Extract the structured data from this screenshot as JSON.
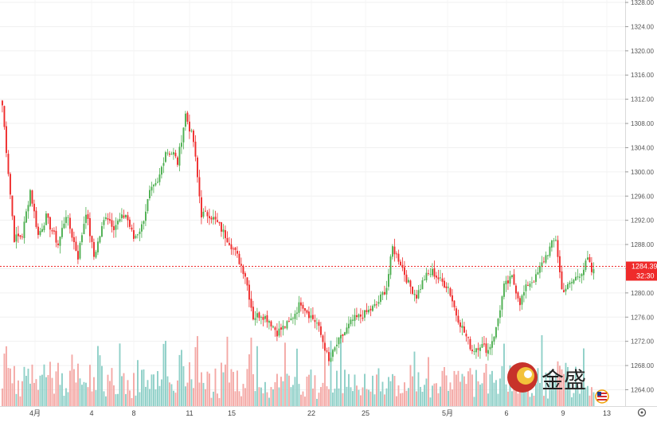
{
  "chart_data": {
    "type": "candlestick",
    "price_axis": {
      "ticks": [
        "1264.00",
        "1268.00",
        "1272.00",
        "1276.00",
        "1280.00",
        "1284.00",
        "1288.00",
        "1292.00",
        "1296.00",
        "1300.00",
        "1304.00",
        "1308.00",
        "1312.00",
        "1316.00",
        "1320.00",
        "1324.00",
        "1328.00"
      ],
      "range": [
        1261.3,
        1328.4
      ]
    },
    "time_axis": {
      "tick_labels": [
        "4月",
        "4",
        "8",
        "11",
        "15",
        "22",
        "25",
        "5月",
        "6",
        "9",
        "13"
      ]
    },
    "current_price": {
      "value": "1284.39",
      "countdown": "32:30"
    },
    "up_color": "#4caf50",
    "down_color": "#ef2b2b",
    "volume_up_color": "#8fd0c8",
    "volume_down_color": "#f4a9a6",
    "key_points": [
      {
        "i": 0,
        "p": 1311.0
      },
      {
        "i": 3,
        "p": 1300.0
      },
      {
        "i": 6,
        "p": 1289.0
      },
      {
        "i": 10,
        "p": 1289.5
      },
      {
        "i": 14,
        "p": 1297.0
      },
      {
        "i": 18,
        "p": 1289.5
      },
      {
        "i": 22,
        "p": 1292.5
      },
      {
        "i": 28,
        "p": 1288.0
      },
      {
        "i": 32,
        "p": 1293.0
      },
      {
        "i": 38,
        "p": 1286.0
      },
      {
        "i": 42,
        "p": 1293.5
      },
      {
        "i": 46,
        "p": 1286.0
      },
      {
        "i": 52,
        "p": 1293.0
      },
      {
        "i": 56,
        "p": 1291.0
      },
      {
        "i": 62,
        "p": 1293.0
      },
      {
        "i": 66,
        "p": 1289.0
      },
      {
        "i": 70,
        "p": 1291.0
      },
      {
        "i": 74,
        "p": 1296.5
      },
      {
        "i": 78,
        "p": 1298.0
      },
      {
        "i": 82,
        "p": 1303.5
      },
      {
        "i": 86,
        "p": 1303.0
      },
      {
        "i": 88,
        "p": 1301.5
      },
      {
        "i": 92,
        "p": 1309.5
      },
      {
        "i": 96,
        "p": 1305.0
      },
      {
        "i": 100,
        "p": 1293.0
      },
      {
        "i": 104,
        "p": 1293.0
      },
      {
        "i": 108,
        "p": 1291.5
      },
      {
        "i": 114,
        "p": 1288.5
      },
      {
        "i": 118,
        "p": 1286.0
      },
      {
        "i": 122,
        "p": 1283.0
      },
      {
        "i": 126,
        "p": 1276.0
      },
      {
        "i": 130,
        "p": 1276.5
      },
      {
        "i": 134,
        "p": 1275.5
      },
      {
        "i": 138,
        "p": 1273.5
      },
      {
        "i": 144,
        "p": 1275.0
      },
      {
        "i": 150,
        "p": 1278.5
      },
      {
        "i": 154,
        "p": 1276.5
      },
      {
        "i": 158,
        "p": 1275.0
      },
      {
        "i": 162,
        "p": 1271.0
      },
      {
        "i": 164,
        "p": 1268.5
      },
      {
        "i": 168,
        "p": 1271.5
      },
      {
        "i": 172,
        "p": 1273.5
      },
      {
        "i": 176,
        "p": 1275.5
      },
      {
        "i": 182,
        "p": 1276.5
      },
      {
        "i": 188,
        "p": 1278.0
      },
      {
        "i": 193,
        "p": 1281.0
      },
      {
        "i": 196,
        "p": 1287.5
      },
      {
        "i": 200,
        "p": 1285.0
      },
      {
        "i": 204,
        "p": 1281.5
      },
      {
        "i": 208,
        "p": 1279.5
      },
      {
        "i": 212,
        "p": 1282.5
      },
      {
        "i": 216,
        "p": 1283.5
      },
      {
        "i": 220,
        "p": 1282.0
      },
      {
        "i": 224,
        "p": 1281.0
      },
      {
        "i": 228,
        "p": 1276.5
      },
      {
        "i": 232,
        "p": 1273.5
      },
      {
        "i": 236,
        "p": 1270.5
      },
      {
        "i": 240,
        "p": 1271.5
      },
      {
        "i": 244,
        "p": 1270.5
      },
      {
        "i": 248,
        "p": 1274.0
      },
      {
        "i": 252,
        "p": 1281.0
      },
      {
        "i": 256,
        "p": 1282.5
      },
      {
        "i": 260,
        "p": 1278.5
      },
      {
        "i": 264,
        "p": 1281.5
      },
      {
        "i": 268,
        "p": 1282.5
      },
      {
        "i": 272,
        "p": 1285.5
      },
      {
        "i": 276,
        "p": 1288.0
      },
      {
        "i": 278,
        "p": 1289.0
      },
      {
        "i": 281,
        "p": 1280.5
      },
      {
        "i": 284,
        "p": 1281.0
      },
      {
        "i": 288,
        "p": 1282.5
      },
      {
        "i": 292,
        "p": 1284.0
      },
      {
        "i": 294,
        "p": 1285.5
      },
      {
        "i": 296,
        "p": 1283.5
      }
    ]
  },
  "watermark": {
    "text": "金盛"
  },
  "ui": {
    "settings_icon": "gear-icon",
    "flag_icon": "us-flag-icon"
  }
}
